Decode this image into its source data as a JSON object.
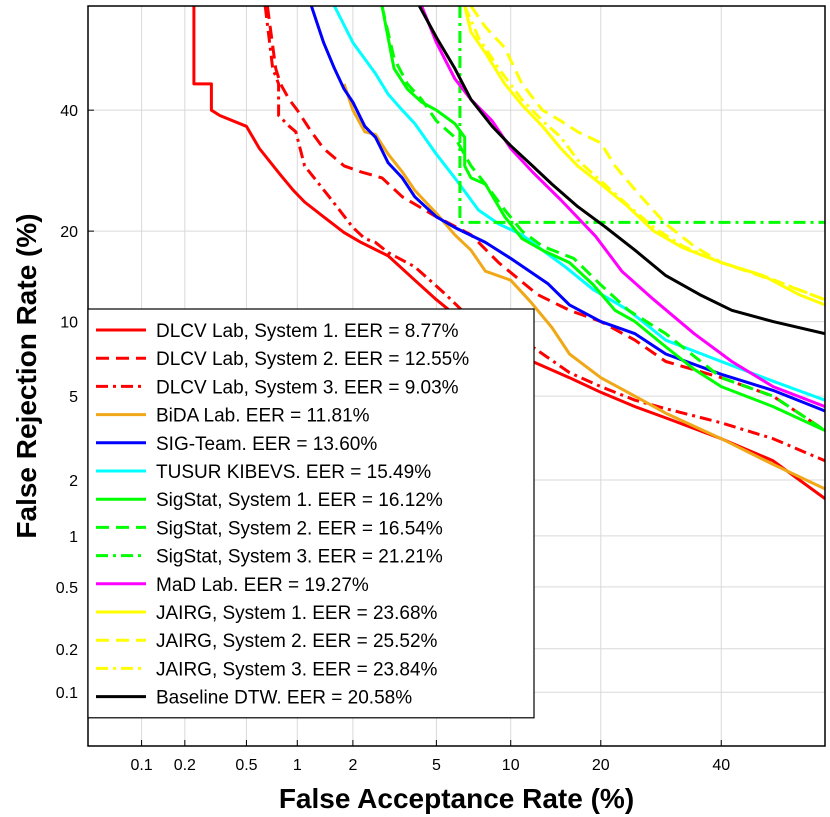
{
  "chart_data": {
    "type": "line",
    "title": "",
    "xlabel": "False Acceptance Rate (%)",
    "ylabel": "False Rejection Rate (%)",
    "xscale": "normal-deviate",
    "yscale": "normal-deviate",
    "xlim": [
      0.04,
      60
    ],
    "ylim": [
      0.04,
      60
    ],
    "grid": true,
    "legend_position": "bottom-left",
    "xticks": [
      {
        "value": 0.1,
        "label": "0.1"
      },
      {
        "value": 0.2,
        "label": "0.2"
      },
      {
        "value": 0.5,
        "label": "0.5"
      },
      {
        "value": 1,
        "label": "1"
      },
      {
        "value": 2,
        "label": "2"
      },
      {
        "value": 5,
        "label": "5"
      },
      {
        "value": 10,
        "label": "10"
      },
      {
        "value": 20,
        "label": "20"
      },
      {
        "value": 40,
        "label": "40"
      }
    ],
    "yticks": [
      {
        "value": 0.1,
        "label": "0.1"
      },
      {
        "value": 0.2,
        "label": "0.2"
      },
      {
        "value": 0.5,
        "label": "0.5"
      },
      {
        "value": 1,
        "label": "1"
      },
      {
        "value": 2,
        "label": "2"
      },
      {
        "value": 5,
        "label": "5"
      },
      {
        "value": 10,
        "label": "10"
      },
      {
        "value": 20,
        "label": "20"
      },
      {
        "value": 40,
        "label": "40"
      }
    ],
    "series": [
      {
        "name": "DLCV Lab, System 1. EER = 8.77%",
        "color": "#ff0000",
        "dash": "solid",
        "x": [
          0.23,
          0.23,
          0.3,
          0.3,
          0.34,
          0.5,
          0.6,
          0.8,
          0.95,
          1.1,
          1.4,
          1.8,
          2.2,
          3,
          4,
          5,
          6,
          7,
          8.8,
          12,
          16,
          20,
          25,
          30,
          40,
          50,
          60
        ],
        "y": [
          60,
          45,
          45,
          40,
          39,
          37,
          33,
          28.5,
          26,
          24.2,
          22,
          19.8,
          18.5,
          16.8,
          14,
          12,
          10.6,
          10,
          8.8,
          7,
          6,
          5.2,
          4.5,
          4,
          3.2,
          2.5,
          1.6
        ]
      },
      {
        "name": "DLCV Lab, System 2. EER = 12.55%",
        "color": "#ff0000",
        "dash": "dashed",
        "x": [
          0.67,
          0.75,
          0.8,
          0.9,
          1,
          1.2,
          1.4,
          1.8,
          2.2,
          2.8,
          3.5,
          5,
          7,
          9,
          12.5,
          16,
          20,
          25,
          30,
          40,
          50,
          60
        ],
        "y": [
          60,
          48,
          45,
          42,
          40,
          36,
          33,
          30,
          29,
          28,
          25,
          22,
          19.5,
          16,
          12.5,
          11,
          10,
          8.5,
          7,
          6,
          5,
          3.5
        ]
      },
      {
        "name": "DLCV Lab, System 3. EER = 9.03%",
        "color": "#ff0000",
        "dash": "dashdot",
        "x": [
          0.65,
          0.72,
          0.78,
          0.78,
          0.9,
          0.98,
          1.1,
          1.5,
          2,
          2.3,
          2.6,
          3,
          4,
          5.5,
          7,
          9,
          12,
          16,
          20,
          25,
          30,
          40,
          50,
          60
        ],
        "y": [
          60,
          48,
          45,
          39,
          37,
          36,
          30,
          25,
          20.5,
          19,
          18.5,
          17.2,
          15.5,
          12.5,
          10.2,
          9,
          8,
          6.3,
          5.5,
          4.8,
          4.4,
          3.8,
          3.2,
          2.5
        ]
      },
      {
        "name": "BiDA Lab. EER = 11.81%",
        "color": "#f0a818",
        "dash": "solid",
        "x": [
          1.8,
          2,
          2.3,
          2.6,
          3,
          3.5,
          4,
          5,
          6,
          7,
          8,
          10,
          11.8,
          14,
          16,
          20,
          25,
          30,
          40,
          50,
          60
        ],
        "y": [
          45,
          40,
          36,
          35.5,
          32,
          29,
          26,
          22.5,
          19.5,
          17.5,
          15,
          14,
          11.8,
          9.5,
          7.5,
          6,
          5,
          4.2,
          3.2,
          2.4,
          1.8
        ]
      },
      {
        "name": "SIG-Team. EER = 13.60%",
        "color": "#0000ff",
        "dash": "solid",
        "x": [
          1.2,
          1.4,
          1.6,
          1.8,
          2,
          2.3,
          2.6,
          3,
          3.5,
          4,
          5,
          6,
          8,
          10,
          13.6,
          16,
          20,
          25,
          30,
          40,
          50,
          60
        ],
        "y": [
          60,
          53,
          48,
          44,
          41.5,
          37,
          35,
          30.5,
          28,
          25,
          22,
          20.5,
          18.5,
          16.5,
          13.6,
          11.5,
          10,
          9,
          7.5,
          6.2,
          5.3,
          4.3
        ]
      },
      {
        "name": "TUSUR KIBEVS. EER = 15.49%",
        "color": "#00ffff",
        "dash": "solid",
        "x": [
          1.6,
          2,
          2.6,
          3,
          3.5,
          4,
          5,
          6,
          7.5,
          9,
          11,
          13,
          15.5,
          19,
          24,
          30,
          40,
          50,
          60
        ],
        "y": [
          60,
          53,
          47,
          43,
          40,
          37.5,
          32,
          28,
          23,
          21,
          19.5,
          17.5,
          15.5,
          13,
          11,
          8.5,
          7,
          5.8,
          4.8
        ]
      },
      {
        "name": "SigStat, System 1. EER = 16.12%",
        "color": "#00ff00",
        "dash": "solid",
        "x": [
          2.8,
          3.2,
          3.7,
          4.3,
          5,
          6,
          6.6,
          6.6,
          7,
          8,
          9.5,
          11,
          13,
          16,
          19,
          22,
          25,
          30,
          35,
          40,
          50,
          60
        ],
        "y": [
          60,
          48,
          44,
          41.5,
          40,
          37.5,
          35,
          30,
          28,
          27,
          22,
          19,
          17.5,
          16,
          13.5,
          11,
          10,
          8,
          6.5,
          5.5,
          4.5,
          3.5
        ]
      },
      {
        "name": "SigStat, System 2. EER = 16.54%",
        "color": "#00ff00",
        "dash": "dashed",
        "x": [
          2.8,
          3.2,
          3.7,
          4.3,
          5,
          6,
          7,
          8,
          9.5,
          11,
          13,
          16.5,
          20,
          24,
          30,
          40,
          50,
          60
        ],
        "y": [
          60,
          50,
          45,
          42,
          38,
          35,
          30,
          27,
          23,
          20,
          18,
          16.5,
          13.5,
          11,
          9,
          6,
          5,
          3.5
        ]
      },
      {
        "name": "SigStat, System 3. EER = 21.21%",
        "color": "#00ff00",
        "dash": "dashdot",
        "x": [
          6.3,
          6.3,
          60
        ],
        "y": [
          60,
          21.21,
          21.21
        ]
      },
      {
        "name": "MaD Lab. EER = 19.27%",
        "color": "#ff00ff",
        "dash": "solid",
        "x": [
          4.3,
          5,
          6,
          7,
          8.5,
          10,
          12,
          15,
          19.3,
          23,
          28,
          35,
          42,
          50,
          60
        ],
        "y": [
          60,
          53,
          46,
          42,
          38,
          33,
          29,
          24.5,
          19.3,
          15,
          12,
          9,
          7,
          5.5,
          4.5
        ]
      },
      {
        "name": "JAIRG, System 1. EER = 23.68%",
        "color": "#ffff00",
        "dash": "solid",
        "x": [
          6.6,
          7,
          8,
          9.5,
          11,
          13,
          15,
          17,
          20,
          23.7,
          28,
          33,
          40,
          48,
          55,
          60
        ],
        "y": [
          60,
          55,
          51,
          45,
          41,
          37,
          33,
          30,
          27,
          23.7,
          20,
          17.8,
          16,
          14.5,
          12.5,
          11.5
        ]
      },
      {
        "name": "JAIRG, System 2. EER = 25.52%",
        "color": "#ffff00",
        "dash": "dashed",
        "x": [
          7,
          8,
          9.5,
          11,
          13,
          15,
          17,
          20,
          22,
          25.5,
          30,
          35,
          40,
          50,
          60
        ],
        "y": [
          60,
          56,
          52,
          45,
          40,
          38,
          36,
          34,
          30,
          25.5,
          21,
          18,
          16,
          14,
          12
        ]
      },
      {
        "name": "JAIRG, System 3. EER = 23.84%",
        "color": "#ffff00",
        "dash": "dashdot",
        "x": [
          6.6,
          7.5,
          9,
          11,
          13,
          15,
          17,
          20,
          23.8,
          28,
          33,
          40,
          48,
          55,
          60
        ],
        "y": [
          60,
          54,
          48,
          42,
          38,
          35,
          31,
          27.5,
          23.8,
          20.5,
          18,
          16,
          14.5,
          13,
          12
        ]
      },
      {
        "name": "Baseline DTW. EER = 20.58%",
        "color": "#000000",
        "dash": "solid",
        "x": [
          4.2,
          5,
          6,
          7,
          8.5,
          10,
          12,
          14,
          17,
          20.6,
          25,
          30,
          36,
          42,
          50,
          60
        ],
        "y": [
          60,
          54,
          48,
          42,
          37,
          33.5,
          30,
          27,
          23.5,
          20.6,
          17.5,
          14.5,
          12.5,
          11,
          10,
          9
        ]
      }
    ]
  }
}
